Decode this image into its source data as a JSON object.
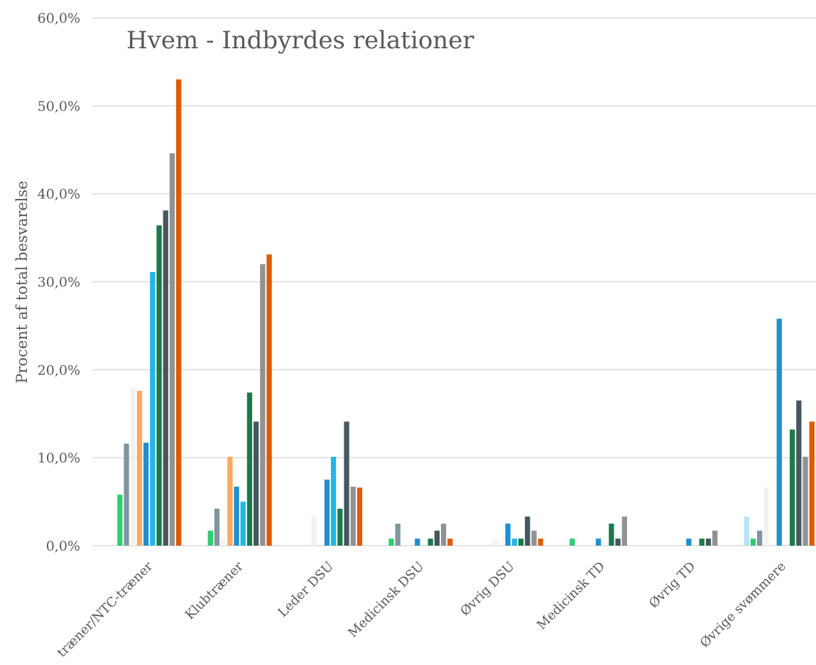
{
  "chart_data": {
    "type": "bar",
    "title": "Hvem - Indbyrdes relationer",
    "ylabel": "Procent af total besvarelse",
    "xlabel": "",
    "ylim": [
      0,
      60
    ],
    "yticks": [
      0,
      10,
      20,
      30,
      40,
      50,
      60
    ],
    "ytick_labels": [
      "0,0%",
      "10,0%",
      "20,0%",
      "30,0%",
      "40,0%",
      "50,0%",
      "60,0%"
    ],
    "grid": true,
    "legend": "none",
    "categories": [
      "Træner/NTC-træner",
      "Klubtræner",
      "Leder DSU",
      "Medicinsk DSU",
      "Øvrig DSU",
      "Medicinsk TD",
      "Øvrig TD",
      "Øvrige svømmere"
    ],
    "category_labels_visible": [
      "træner/NTC-træner",
      "Klubtræner",
      "Leder DSU",
      "Medicinsk DSU",
      "Øvrig DSU",
      "Medicinsk TD",
      "Øvrig TD",
      "Øvrige svømmere"
    ],
    "series": [
      {
        "color": "#b7e3f2",
        "values": [
          0,
          0,
          0,
          0,
          0,
          0,
          0,
          3.3
        ]
      },
      {
        "color": "#2ecc71",
        "values": [
          5.8,
          1.7,
          0,
          0.8,
          0,
          0.8,
          0,
          0.8
        ]
      },
      {
        "color": "#7f969f",
        "values": [
          11.6,
          4.2,
          0,
          2.5,
          0,
          0,
          0,
          1.7
        ]
      },
      {
        "color": "#f2f2f2",
        "values": [
          17.9,
          0.8,
          3.3,
          0,
          0.8,
          0,
          0,
          6.6
        ]
      },
      {
        "color": "#fca862",
        "values": [
          17.6,
          10.1,
          0,
          0,
          0,
          0,
          0,
          0
        ]
      },
      {
        "color": "#1f8fcf",
        "values": [
          11.7,
          6.7,
          7.5,
          0.8,
          2.5,
          0.8,
          0.8,
          25.8
        ]
      },
      {
        "color": "#23b6e6",
        "values": [
          31.1,
          5.0,
          10.1,
          0,
          0.8,
          0,
          0,
          0
        ]
      },
      {
        "color": "#1a7a4c",
        "values": [
          36.4,
          17.4,
          4.2,
          0.8,
          0.8,
          2.5,
          0.8,
          13.2
        ]
      },
      {
        "color": "#45575f",
        "values": [
          38.1,
          14.1,
          14.1,
          1.7,
          3.3,
          0.8,
          0.8,
          16.5
        ]
      },
      {
        "color": "#929292",
        "values": [
          44.6,
          32.0,
          6.7,
          2.5,
          1.7,
          3.3,
          1.7,
          10.1
        ]
      },
      {
        "color": "#dd5c07",
        "values": [
          53.0,
          33.1,
          6.6,
          0.8,
          0.8,
          0,
          0,
          14.1
        ]
      }
    ]
  }
}
